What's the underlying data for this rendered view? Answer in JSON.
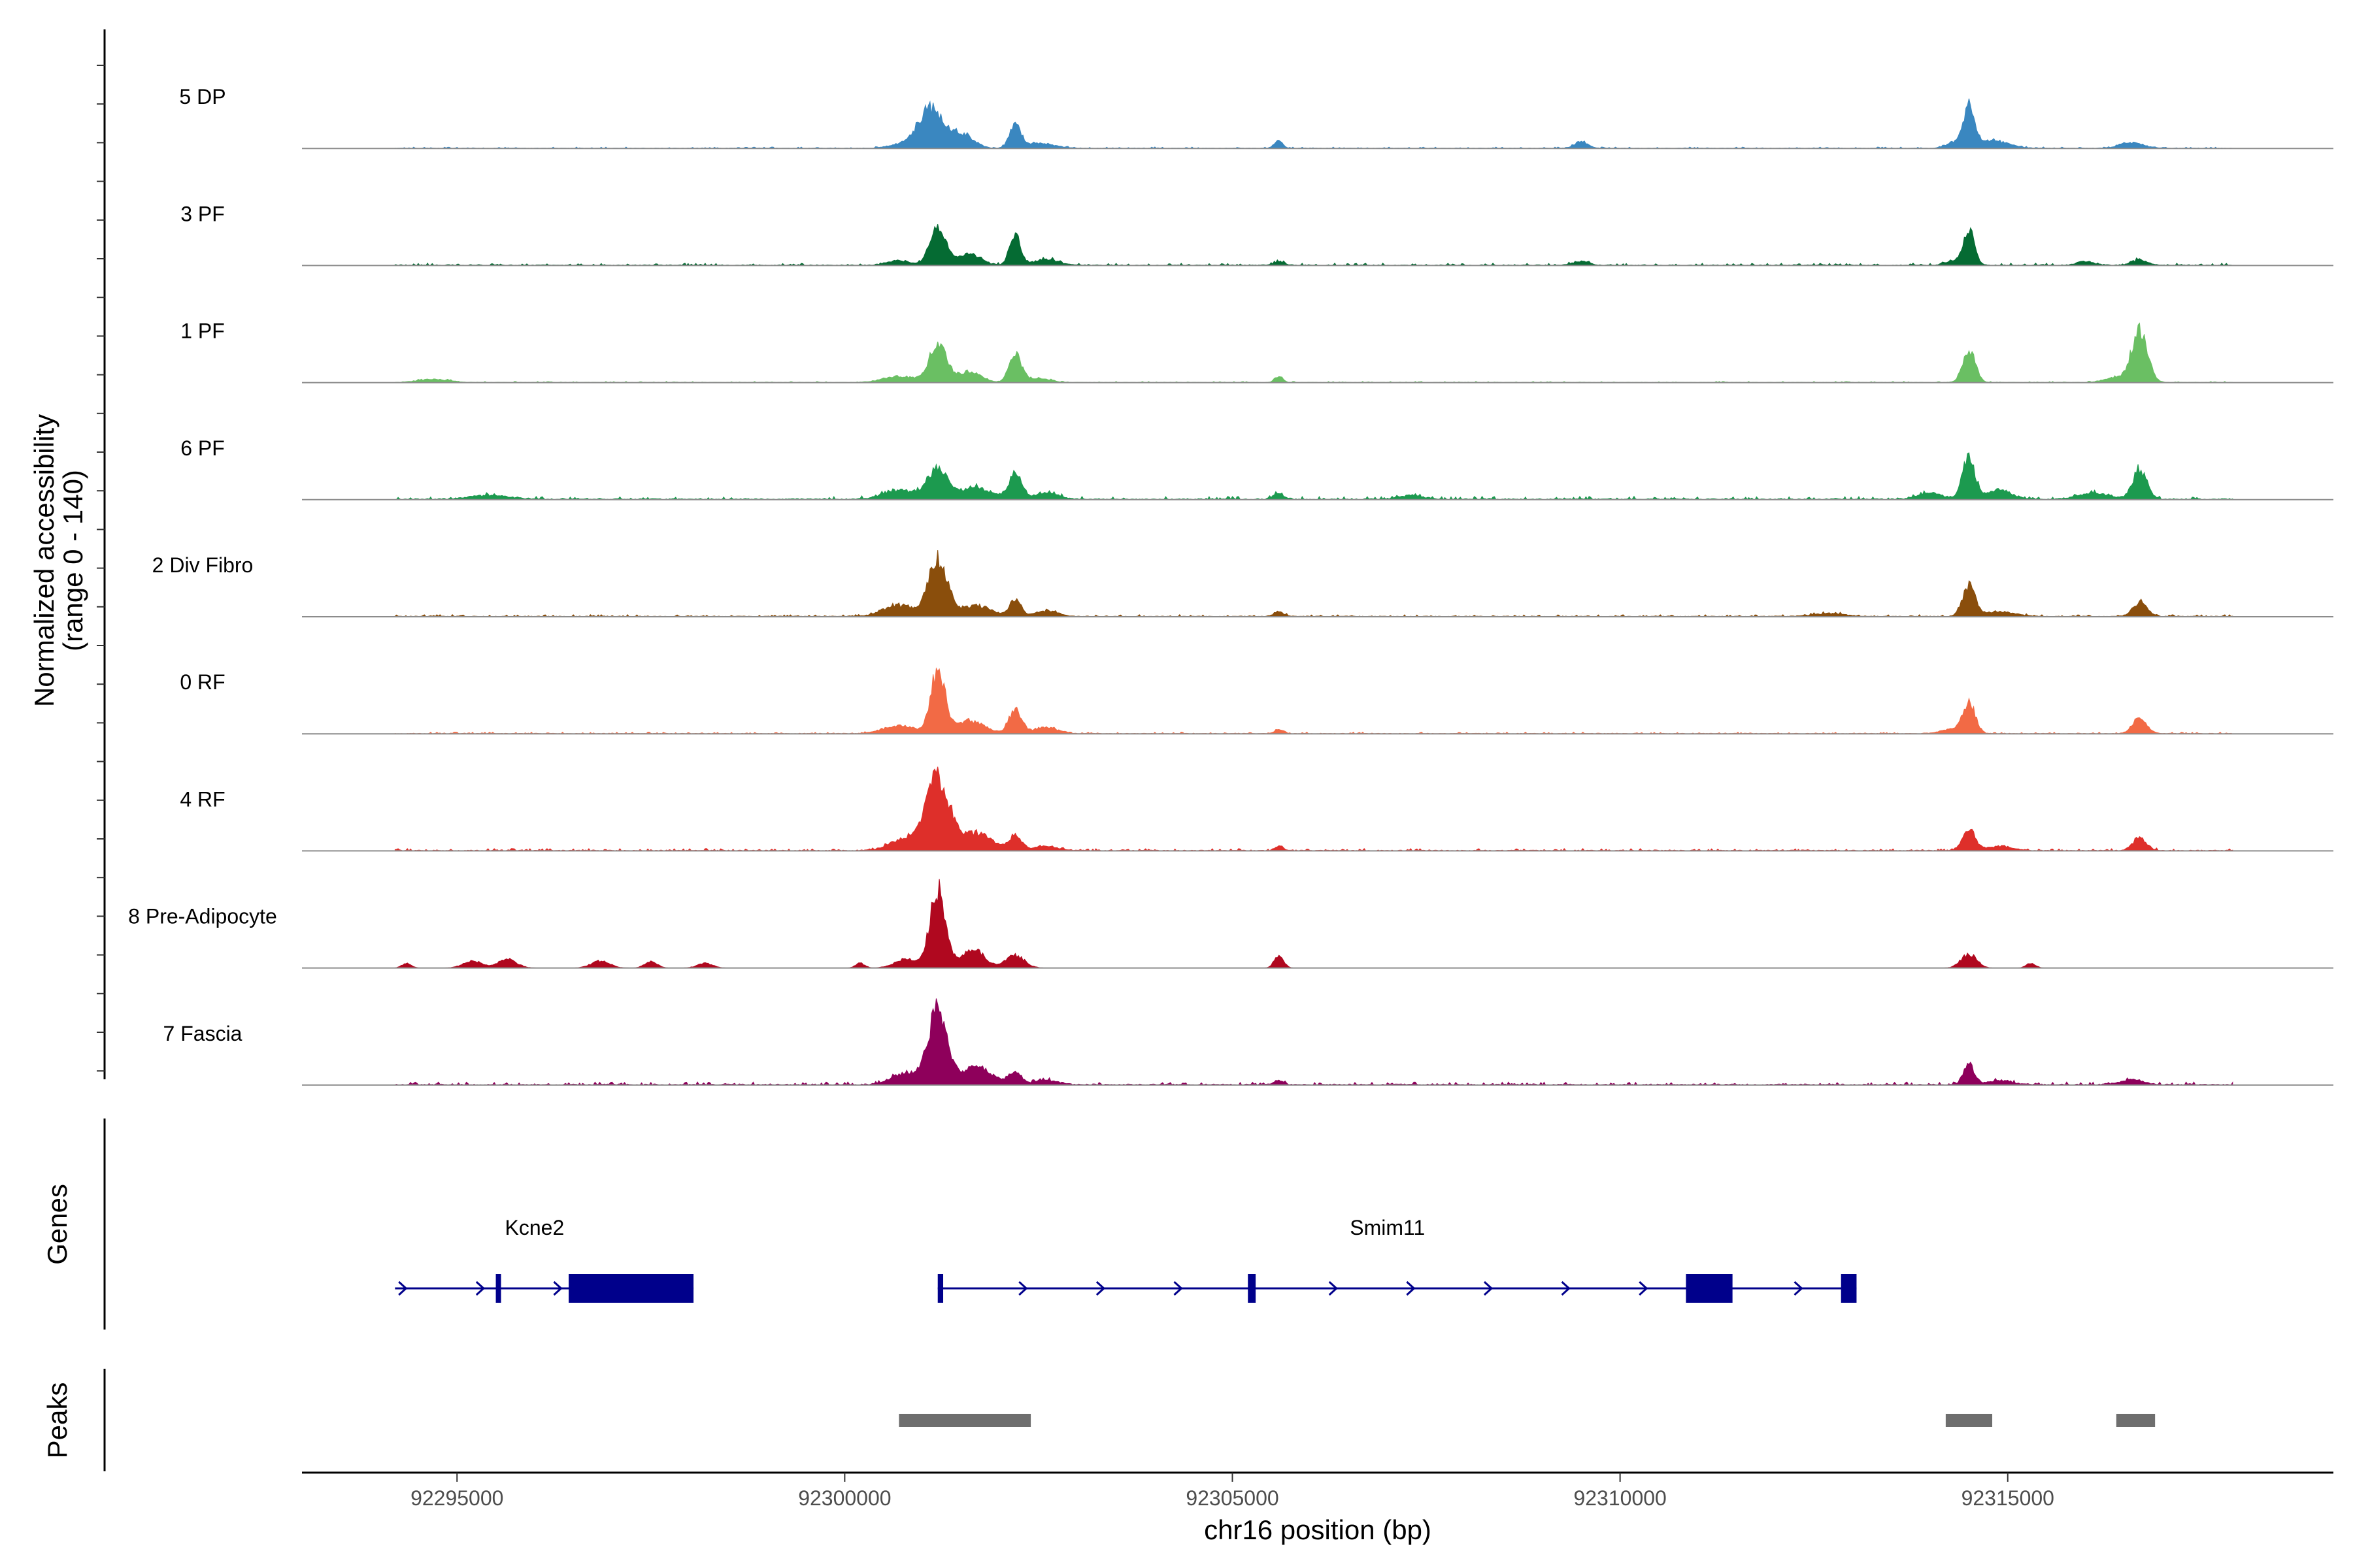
{
  "chart_data": {
    "type": "area",
    "genomic_range": {
      "chrom": "chr16",
      "start": 92293000,
      "end": 92319200
    },
    "xlabel": "chr16 position (bp)",
    "x_ticks": [
      92295000,
      92300000,
      92305000,
      92310000,
      92315000
    ],
    "x_tick_labels": [
      "92295000",
      "92300000",
      "92305000",
      "92310000",
      "92315000"
    ],
    "coverage_panel": {
      "ylabel_line1": "Normalized accessibility",
      "ylabel_line2": "(range 0 - 140)",
      "y_range": [
        0,
        140
      ]
    },
    "tracks": [
      {
        "name": "5 DP",
        "color": "#3a87c0",
        "noise": [
          [
            92294200,
            0.6
          ],
          [
            92317900,
            0.6
          ]
        ],
        "peaks": [
          [
            92300700,
            4,
            150
          ],
          [
            92301100,
            52,
            160
          ],
          [
            92301500,
            18,
            150
          ],
          [
            92302200,
            30,
            70
          ],
          [
            92302500,
            6,
            200
          ],
          [
            92305600,
            10,
            50
          ],
          [
            92309500,
            9,
            80
          ],
          [
            92314300,
            7,
            100
          ],
          [
            92314500,
            54,
            70
          ],
          [
            92314800,
            10,
            200
          ],
          [
            92316600,
            7,
            150
          ]
        ]
      },
      {
        "name": "3 PF",
        "color": "#056b33",
        "noise": [
          [
            92294200,
            1.0
          ],
          [
            92317900,
            1.0
          ]
        ],
        "peaks": [
          [
            92300700,
            6,
            150
          ],
          [
            92301200,
            50,
            100
          ],
          [
            92301600,
            14,
            150
          ],
          [
            92302200,
            38,
            70
          ],
          [
            92302600,
            8,
            150
          ],
          [
            92305600,
            4,
            80
          ],
          [
            92309500,
            5,
            100
          ],
          [
            92314300,
            6,
            100
          ],
          [
            92314500,
            45,
            70
          ],
          [
            92316000,
            5,
            100
          ],
          [
            92316700,
            7,
            100
          ]
        ]
      },
      {
        "name": "1 PF",
        "color": "#6abf63",
        "noise": [
          [
            92294200,
            0.5
          ],
          [
            92317900,
            0.5
          ]
        ],
        "peaks": [
          [
            92294700,
            4,
            200
          ],
          [
            92300700,
            8,
            200
          ],
          [
            92301200,
            48,
            110
          ],
          [
            92301600,
            14,
            150
          ],
          [
            92302200,
            36,
            80
          ],
          [
            92302500,
            5,
            150
          ],
          [
            92305600,
            8,
            50
          ],
          [
            92314500,
            42,
            80
          ],
          [
            92316700,
            68,
            100
          ],
          [
            92316400,
            6,
            150
          ]
        ]
      },
      {
        "name": "6 PF",
        "color": "#1c9a4f",
        "noise": [
          [
            92294200,
            1.4
          ],
          [
            92317900,
            1.4
          ]
        ],
        "peaks": [
          [
            92295400,
            5,
            250
          ],
          [
            92300700,
            12,
            200
          ],
          [
            92301200,
            38,
            130
          ],
          [
            92301700,
            15,
            200
          ],
          [
            92302200,
            32,
            80
          ],
          [
            92302600,
            8,
            150
          ],
          [
            92305600,
            8,
            60
          ],
          [
            92307300,
            5,
            150
          ],
          [
            92314000,
            8,
            150
          ],
          [
            92314500,
            52,
            80
          ],
          [
            92314900,
            12,
            150
          ],
          [
            92316100,
            8,
            200
          ],
          [
            92316700,
            38,
            90
          ]
        ]
      },
      {
        "name": "2 Div Fibro",
        "color": "#8a4e0c",
        "noise": [
          [
            92294200,
            0.9
          ],
          [
            92317900,
            0.9
          ]
        ],
        "peaks": [
          [
            92300700,
            14,
            200
          ],
          [
            92301200,
            75,
            120
          ],
          [
            92301700,
            14,
            200
          ],
          [
            92302200,
            22,
            70
          ],
          [
            92302600,
            7,
            150
          ],
          [
            92305600,
            6,
            60
          ],
          [
            92312700,
            4,
            200
          ],
          [
            92314500,
            40,
            80
          ],
          [
            92314900,
            6,
            200
          ],
          [
            92316700,
            18,
            90
          ]
        ]
      },
      {
        "name": "0 RF",
        "color": "#f26a45",
        "noise": [
          [
            92294200,
            0.7
          ],
          [
            92317900,
            0.7
          ]
        ],
        "peaks": [
          [
            92300700,
            10,
            200
          ],
          [
            92301200,
            80,
            90
          ],
          [
            92301600,
            16,
            200
          ],
          [
            92302200,
            32,
            80
          ],
          [
            92302600,
            8,
            150
          ],
          [
            92305600,
            6,
            50
          ],
          [
            92314300,
            6,
            150
          ],
          [
            92314500,
            38,
            80
          ],
          [
            92316700,
            20,
            90
          ]
        ]
      },
      {
        "name": "4 RF",
        "color": "#de2f2a",
        "noise": [
          [
            92294200,
            1.0
          ],
          [
            92317900,
            1.0
          ]
        ],
        "peaks": [
          [
            92300800,
            16,
            200
          ],
          [
            92301200,
            92,
            150
          ],
          [
            92301700,
            22,
            200
          ],
          [
            92302200,
            18,
            80
          ],
          [
            92302600,
            6,
            150
          ],
          [
            92305600,
            6,
            50
          ],
          [
            92314500,
            28,
            80
          ],
          [
            92314900,
            6,
            150
          ],
          [
            92316700,
            16,
            90
          ]
        ]
      },
      {
        "name": "8 Pre-Adipocyte",
        "color": "#b0081f",
        "noise": [
          [
            92294200,
            0.0
          ],
          [
            92317900,
            0.0
          ]
        ],
        "peaks": [
          [
            92294350,
            6,
            60
          ],
          [
            92295200,
            9,
            120
          ],
          [
            92295650,
            11,
            120
          ],
          [
            92296850,
            9,
            120
          ],
          [
            92297500,
            8,
            80
          ],
          [
            92298200,
            6,
            100
          ],
          [
            92300200,
            6,
            60
          ],
          [
            92300800,
            12,
            150
          ],
          [
            92301200,
            100,
            100
          ],
          [
            92301650,
            24,
            150
          ],
          [
            92302200,
            16,
            120
          ],
          [
            92305600,
            16,
            60
          ],
          [
            92314500,
            18,
            100
          ],
          [
            92315300,
            6,
            60
          ]
        ]
      },
      {
        "name": "7 Fascia",
        "color": "#8e005b",
        "noise": [
          [
            92294200,
            1.3
          ],
          [
            92317900,
            1.3
          ]
        ],
        "peaks": [
          [
            92300800,
            14,
            200
          ],
          [
            92301200,
            95,
            120
          ],
          [
            92301700,
            22,
            200
          ],
          [
            92302200,
            16,
            80
          ],
          [
            92302600,
            6,
            150
          ],
          [
            92305600,
            6,
            60
          ],
          [
            92314500,
            26,
            70
          ],
          [
            92314900,
            5,
            150
          ],
          [
            92316600,
            6,
            150
          ]
        ]
      }
    ],
    "genes_panel": {
      "title": "Genes",
      "color": "#00008b",
      "genes": [
        {
          "name": "Kcne2",
          "start": 92294200,
          "end": 92298050,
          "strand": "+",
          "exons": [
            [
              92295500,
              92295560
            ],
            [
              92296440,
              92298050
            ]
          ]
        },
        {
          "name": "Smim11",
          "start": 92301200,
          "end": 92313050,
          "strand": "+",
          "exons": [
            [
              92301200,
              92301270
            ],
            [
              92305200,
              92305300
            ],
            [
              92310850,
              92311450
            ],
            [
              92312850,
              92313050
            ]
          ]
        }
      ]
    },
    "peaks_panel": {
      "title": "Peaks",
      "color": "#6e6e6e",
      "regions": [
        [
          92300700,
          92302400
        ],
        [
          92314200,
          92314800
        ],
        [
          92316400,
          92316900
        ]
      ]
    }
  }
}
